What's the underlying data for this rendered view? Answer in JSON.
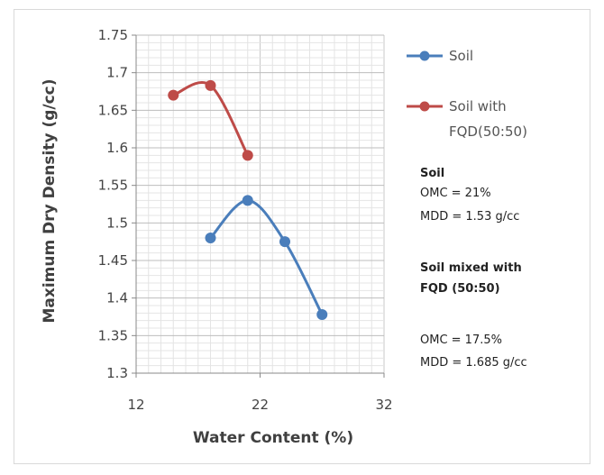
{
  "chart_data": {
    "type": "line",
    "title": "",
    "xlabel": "Water Content (%)",
    "ylabel": "Maximum Dry Density (g/cc)",
    "xlim": [
      12,
      32
    ],
    "ylim": [
      1.3,
      1.75
    ],
    "xticks": [
      "12",
      "22",
      "32"
    ],
    "yticks": [
      "1.3",
      "1.35",
      "1.4",
      "1.45",
      "1.5",
      "1.55",
      "1.6",
      "1.65",
      "1.7",
      "1.75"
    ],
    "grid": true,
    "legend_position": "right",
    "series": [
      {
        "name": "Soil",
        "color": "#4a7ebb",
        "x": [
          18,
          21,
          24,
          27
        ],
        "y": [
          1.48,
          1.53,
          1.475,
          1.378
        ]
      },
      {
        "name": "Soil with FQD(50:50)",
        "legend_lines": [
          "Soil with",
          "FQD(50:50)"
        ],
        "color": "#be4b48",
        "x": [
          15,
          18,
          21
        ],
        "y": [
          1.67,
          1.683,
          1.59
        ]
      }
    ]
  },
  "annotations": {
    "soil_heading": "Soil",
    "soil_omc": "OMC = 21%",
    "soil_mdd": "MDD = 1.53 g/cc",
    "mix_heading_line1": "Soil mixed with",
    "mix_heading_line2": "FQD (50:50)",
    "mix_omc": "OMC =  17.5%",
    "mix_mdd": "MDD =  1.685 g/cc"
  }
}
